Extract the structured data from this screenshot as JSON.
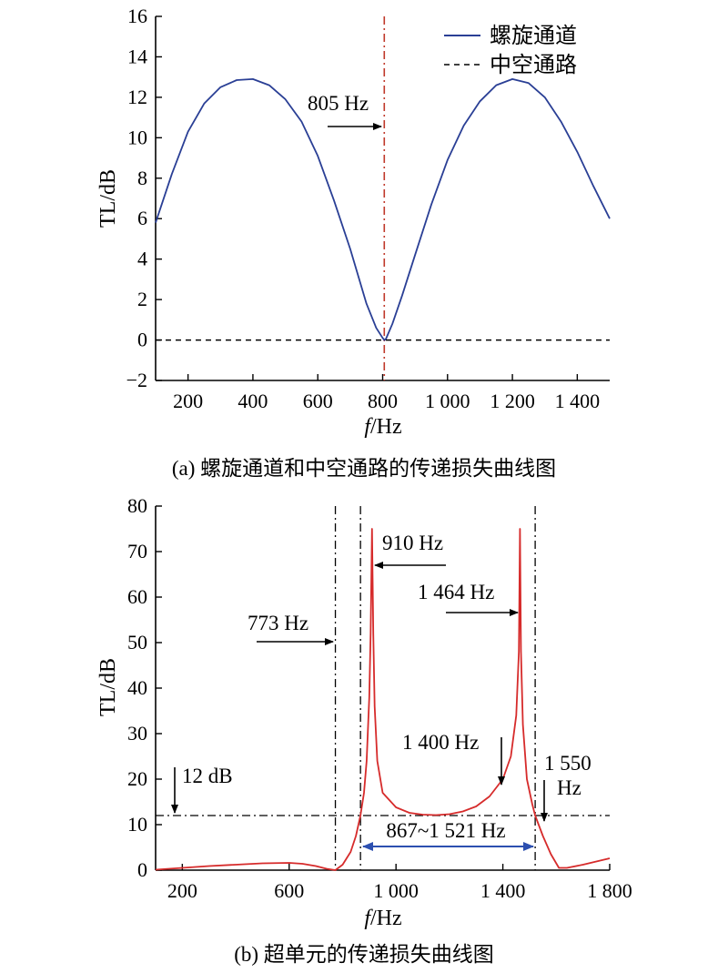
{
  "colors": {
    "spiral": "#2a3f95",
    "resonance_line": "#c0392b",
    "supercell": "#d62b2b",
    "band_arrow": "#2c4fb0",
    "axis": "#000000"
  },
  "chart_data": [
    {
      "type": "line",
      "caption": "(a) 螺旋通道和中空通路的传递损失曲线图",
      "xlabel": "f/Hz",
      "xlabel_italic": "f",
      "xlabel_unit": "/Hz",
      "ylabel": "TL/dB",
      "xlim": [
        100,
        1500
      ],
      "ylim": [
        -2,
        16
      ],
      "xticks": [
        200,
        400,
        600,
        800,
        1000,
        1200,
        1400
      ],
      "xtick_labels": [
        "200",
        "400",
        "600",
        "800",
        "1 000",
        "1 200",
        "1 400"
      ],
      "yticks": [
        -2,
        0,
        2,
        4,
        6,
        8,
        10,
        12,
        14,
        16
      ],
      "ytick_labels": [
        "−2",
        "0",
        "2",
        "4",
        "6",
        "8",
        "10",
        "12",
        "14",
        "16"
      ],
      "legend_position": "top-right",
      "series": [
        {
          "name": "螺旋通道",
          "style": "solid",
          "x": [
            100,
            150,
            200,
            250,
            300,
            350,
            400,
            450,
            500,
            550,
            600,
            650,
            700,
            750,
            780,
            800,
            805,
            810,
            830,
            860,
            900,
            950,
            1000,
            1050,
            1100,
            1150,
            1200,
            1250,
            1300,
            1350,
            1400,
            1450,
            1500
          ],
          "y": [
            5.8,
            8.2,
            10.3,
            11.7,
            12.5,
            12.85,
            12.9,
            12.6,
            11.9,
            10.8,
            9.1,
            6.9,
            4.5,
            1.8,
            0.6,
            0.1,
            0.0,
            0.05,
            0.8,
            2.2,
            4.2,
            6.7,
            8.9,
            10.6,
            11.8,
            12.6,
            12.9,
            12.7,
            12.0,
            10.8,
            9.3,
            7.6,
            6.0
          ]
        },
        {
          "name": "中空通路",
          "style": "dashed",
          "x": [
            100,
            1500
          ],
          "y": [
            0,
            0
          ]
        }
      ],
      "annotations": [
        {
          "text": "805 Hz",
          "x": 805
        }
      ],
      "vline": {
        "x": 805,
        "style": "dash-dot"
      }
    },
    {
      "type": "line",
      "caption": "(b) 超单元的传递损失曲线图",
      "xlabel": "f/Hz",
      "xlabel_italic": "f",
      "xlabel_unit": "/Hz",
      "ylabel": "TL/dB",
      "xlim": [
        100,
        1800
      ],
      "ylim": [
        0,
        80
      ],
      "xticks": [
        200,
        600,
        1000,
        1400,
        1800
      ],
      "xtick_labels": [
        "200",
        "600",
        "1 000",
        "1 400",
        "1 800"
      ],
      "yticks": [
        0,
        10,
        20,
        30,
        40,
        50,
        60,
        70,
        80
      ],
      "ytick_labels": [
        "0",
        "10",
        "20",
        "30",
        "40",
        "50",
        "60",
        "70",
        "80"
      ],
      "series": [
        {
          "style": "solid",
          "x": [
            100,
            200,
            300,
            400,
            500,
            600,
            650,
            700,
            740,
            773,
            800,
            830,
            850,
            867,
            880,
            890,
            900,
            905,
            910,
            915,
            920,
            930,
            950,
            1000,
            1050,
            1100,
            1150,
            1200,
            1250,
            1300,
            1350,
            1400,
            1430,
            1450,
            1460,
            1464,
            1468,
            1475,
            1490,
            1510,
            1521,
            1550,
            1580,
            1610,
            1640,
            1700,
            1750,
            1800
          ],
          "y": [
            0.1,
            0.5,
            0.9,
            1.2,
            1.5,
            1.6,
            1.4,
            0.9,
            0.3,
            0.0,
            1.2,
            4.0,
            7.5,
            12.0,
            17.0,
            24.0,
            38.0,
            52.0,
            75.0,
            52.0,
            36.0,
            24.0,
            17.0,
            13.8,
            12.6,
            12.2,
            12.1,
            12.3,
            12.9,
            14.0,
            16.2,
            20.0,
            25.0,
            34.0,
            48.0,
            75.0,
            48.0,
            32.0,
            20.0,
            14.5,
            12.0,
            7.5,
            3.5,
            0.5,
            0.5,
            1.2,
            1.9,
            2.6
          ]
        }
      ],
      "hline": {
        "y": 12,
        "style": "dash-dot"
      },
      "vlines": [
        {
          "x": 773,
          "style": "dash-dot"
        },
        {
          "x": 867,
          "style": "dash-dot"
        },
        {
          "x": 1521,
          "style": "dash-dot"
        }
      ],
      "annotations": [
        {
          "text": "773 Hz",
          "x": 773
        },
        {
          "text": "910 Hz",
          "x": 910
        },
        {
          "text": "1 464 Hz",
          "x": 1464
        },
        {
          "text": "1 400 Hz",
          "x": 1400
        },
        {
          "text": "1 550",
          "text2": "Hz",
          "x": 1550
        },
        {
          "text": "12 dB",
          "y": 12
        },
        {
          "text": "867~1 521 Hz",
          "band": [
            867,
            1521
          ]
        }
      ]
    }
  ]
}
